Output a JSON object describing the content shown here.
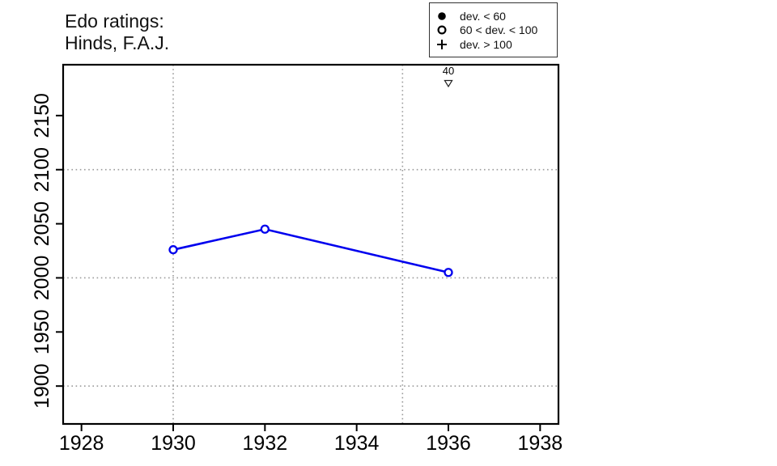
{
  "title": {
    "line1": "Edo ratings:",
    "line2": "Hinds, F.A.J."
  },
  "legend": {
    "position": "top-right",
    "items": [
      {
        "symbol": "filled-circle",
        "label": "dev. < 60"
      },
      {
        "symbol": "open-circle",
        "label": "60 < dev. < 100"
      },
      {
        "symbol": "plus",
        "label": "dev. > 100"
      }
    ]
  },
  "chart_data": {
    "type": "line",
    "title": "Edo ratings: Hinds, F.A.J.",
    "xlabel": "",
    "ylabel": "",
    "xlim": [
      1927.6,
      1938.4
    ],
    "ylim": [
      1865,
      2197
    ],
    "x_ticks": [
      1928,
      1930,
      1932,
      1934,
      1936,
      1938
    ],
    "y_ticks": [
      1900,
      1950,
      2000,
      2050,
      2100,
      2150
    ],
    "grid": true,
    "grid_x": [
      1930,
      1935
    ],
    "grid_y": [
      1900,
      2000,
      2100
    ],
    "legend_position": "top-right",
    "series": [
      {
        "name": "Edo rating",
        "marker": "open-circle",
        "marker_meaning": "60 < dev. < 100",
        "color": "#0000ee",
        "points": [
          {
            "x": 1930,
            "y": 2026
          },
          {
            "x": 1932,
            "y": 2045
          },
          {
            "x": 1936,
            "y": 2005
          }
        ]
      }
    ],
    "annotations": [
      {
        "x": 1936,
        "label": "40",
        "symbol": "open-down-triangle"
      }
    ]
  },
  "colors": {
    "line": "#0000ee",
    "grid": "#9b9b9b",
    "axis": "#000000",
    "annotation": "#222222"
  }
}
